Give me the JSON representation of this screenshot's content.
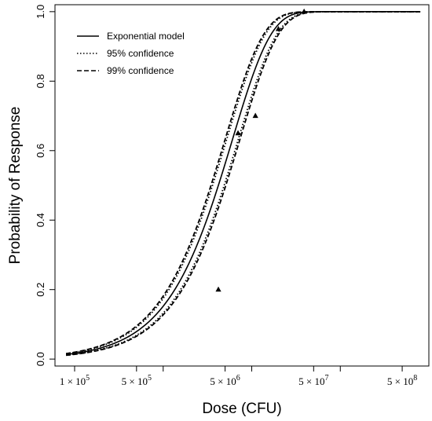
{
  "chart_data": {
    "type": "line",
    "title": "",
    "xlabel": "Dose (CFU)",
    "ylabel": "Probability of Response",
    "x_scale": "log",
    "xlim": [
      60000,
      1000000000
    ],
    "ylim": [
      -0.02,
      1.02
    ],
    "x_ticks": [
      {
        "value": 100000,
        "mant": "1",
        "exp": "5"
      },
      {
        "value": 500000,
        "mant": "5",
        "exp": "5"
      },
      {
        "value": 5000000,
        "mant": "5",
        "exp": "6"
      },
      {
        "value": 50000000,
        "mant": "5",
        "exp": "7"
      },
      {
        "value": 500000000,
        "mant": "5",
        "exp": "8"
      }
    ],
    "x_times": "×",
    "x_unlabeled_ticks": [
      1000000,
      10000000,
      100000000
    ],
    "y_ticks": [
      0.0,
      0.2,
      0.4,
      0.6,
      0.8,
      1.0
    ],
    "y_tick_labels": [
      "0.0",
      "0.2",
      "0.4",
      "0.6",
      "0.8",
      "1.0"
    ],
    "model": {
      "type": "exponential",
      "k": 1.65e-07
    },
    "model_range": [
      80000,
      800000000
    ],
    "series": [
      {
        "name": "Exponential model",
        "style": "solid",
        "k": 1.65e-07
      },
      {
        "name": "95% confidence",
        "style": "dotted",
        "k_lower": 1.42e-07,
        "k_upper": 1.92e-07
      },
      {
        "name": "99% confidence",
        "style": "dashed",
        "k_lower": 1.36e-07,
        "k_upper": 2e-07
      }
    ],
    "observations": [
      {
        "x": 4200000,
        "y": 0.2
      },
      {
        "x": 7000000,
        "y": 0.65
      },
      {
        "x": 11000000,
        "y": 0.7
      },
      {
        "x": 20000000,
        "y": 0.95
      },
      {
        "x": 39000000,
        "y": 1.0
      }
    ],
    "legend_position": "top-left",
    "grid": false,
    "colors": {
      "line": "#000000",
      "marker": "#000000"
    }
  }
}
